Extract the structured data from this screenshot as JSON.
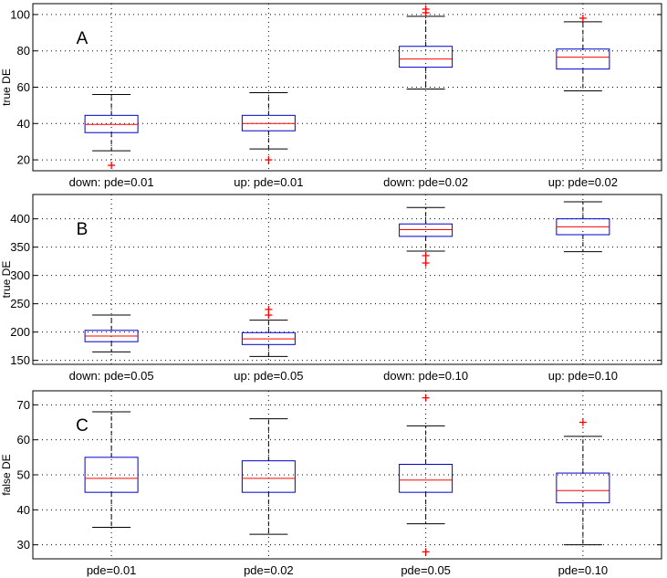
{
  "colors": {
    "box": "#0000cc",
    "median": "#ff0000",
    "whisker": "#000000",
    "outlier": "#ff0000",
    "grid": "#000000",
    "frame": "#000000"
  },
  "chart_data": [
    {
      "type": "boxplot",
      "panel_label": "A",
      "ylabel": "true DE",
      "ylim": [
        14,
        106
      ],
      "yticks": [
        20,
        40,
        60,
        80,
        100
      ],
      "grid": true,
      "categories": [
        "down: pde=0.01",
        "up: pde=0.01",
        "down: pde=0.02",
        "up: pde=0.02"
      ],
      "boxes": [
        {
          "whisker_low": 25,
          "q1": 35,
          "median": 39.5,
          "q3": 44.5,
          "whisker_high": 56,
          "outliers": [
            17
          ]
        },
        {
          "whisker_low": 26,
          "q1": 36,
          "median": 40,
          "q3": 44.5,
          "whisker_high": 57,
          "outliers": [
            20
          ]
        },
        {
          "whisker_low": 59,
          "q1": 71,
          "median": 75.5,
          "q3": 82.5,
          "whisker_high": 99,
          "outliers": [
            101,
            103
          ]
        },
        {
          "whisker_low": 58,
          "q1": 70,
          "median": 76.5,
          "q3": 81,
          "whisker_high": 96,
          "outliers": [
            98
          ]
        }
      ]
    },
    {
      "type": "boxplot",
      "panel_label": "B",
      "ylabel": "true DE",
      "ylim": [
        143,
        443
      ],
      "yticks": [
        150,
        200,
        250,
        300,
        350,
        400
      ],
      "grid": true,
      "categories": [
        "down: pde=0.05",
        "up: pde=0.05",
        "down: pde=0.10",
        "up: pde=0.10"
      ],
      "boxes": [
        {
          "whisker_low": 165,
          "q1": 183,
          "median": 193,
          "q3": 203,
          "whisker_high": 230,
          "outliers": []
        },
        {
          "whisker_low": 157,
          "q1": 178,
          "median": 188,
          "q3": 199,
          "whisker_high": 221,
          "outliers": [
            230,
            240
          ]
        },
        {
          "whisker_low": 343,
          "q1": 369,
          "median": 381,
          "q3": 391,
          "whisker_high": 420,
          "outliers": [
            322,
            335
          ]
        },
        {
          "whisker_low": 342,
          "q1": 372,
          "median": 386,
          "q3": 400,
          "whisker_high": 430,
          "outliers": []
        }
      ]
    },
    {
      "type": "boxplot",
      "panel_label": "C",
      "ylabel": "false DE",
      "ylim": [
        26,
        74
      ],
      "yticks": [
        30,
        40,
        50,
        60,
        70
      ],
      "grid": true,
      "categories": [
        "pde=0.01",
        "pde=0.02",
        "pde=0.05",
        "pde=0.10"
      ],
      "boxes": [
        {
          "whisker_low": 35,
          "q1": 45,
          "median": 49,
          "q3": 55,
          "whisker_high": 68,
          "outliers": []
        },
        {
          "whisker_low": 33,
          "q1": 45,
          "median": 49,
          "q3": 54,
          "whisker_high": 66,
          "outliers": []
        },
        {
          "whisker_low": 36,
          "q1": 45,
          "median": 48.5,
          "q3": 53,
          "whisker_high": 64,
          "outliers": [
            72,
            28
          ]
        },
        {
          "whisker_low": 30,
          "q1": 42,
          "median": 45.5,
          "q3": 50.5,
          "whisker_high": 61,
          "outliers": [
            65
          ]
        }
      ]
    }
  ]
}
